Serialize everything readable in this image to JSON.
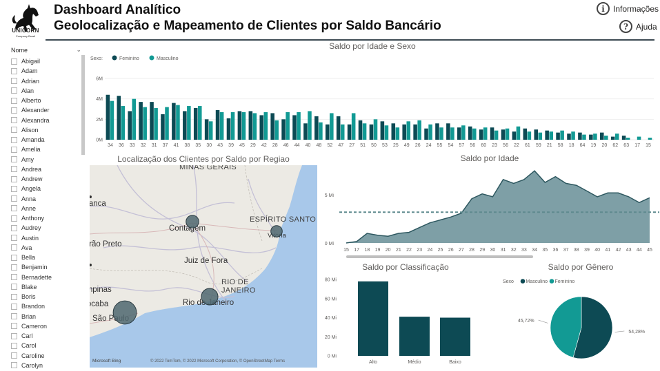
{
  "header": {
    "logo_text": "UNICORN",
    "logo_sub": "Company Brasil",
    "title_line1": "Dashboard Analítico",
    "title_line2": "Geolocalização e Mapeamento de Clientes por Saldo Bancário",
    "info_label": "Informações",
    "help_label": "Ajuda"
  },
  "slicer": {
    "header": "Nome",
    "items": [
      "Abigail",
      "Adam",
      "Adrian",
      "Alan",
      "Alberto",
      "Alexander",
      "Alexandra",
      "Alison",
      "Amanda",
      "Amelia",
      "Amy",
      "Andrea",
      "Andrew",
      "Angela",
      "Anna",
      "Anne",
      "Anthony",
      "Audrey",
      "Austin",
      "Ava",
      "Bella",
      "Benjamin",
      "Bernadette",
      "Blake",
      "Boris",
      "Brandon",
      "Brian",
      "Cameron",
      "Carl",
      "Carol",
      "Caroline",
      "Carolyn"
    ]
  },
  "colors": {
    "feminino": "#0d4a54",
    "masculino": "#129a94",
    "area_fill": "#7e9fa6",
    "area_line": "#2e5860",
    "ref_line": "#5e8a8e",
    "header_line": "#3c4a52"
  },
  "bar_chart": {
    "title": "Saldo por Idade e Sexo",
    "legend_title": "Sexo:",
    "series_names": [
      "Feminino",
      "Masculino"
    ]
  },
  "map_vis": {
    "title": "Localização dos Clientes por Saldo por Regiao",
    "states": [
      "MINAS GERAIS",
      "ESPÍRITO SANTO",
      "RIO DE",
      "JANEIRO"
    ],
    "cities": [
      "Contagem",
      "Vitória",
      "Juiz de Fora",
      "Rio de Janeiro",
      "São Paulo",
      "Campinas",
      "Sorocaba",
      "Ribeirão Preto",
      "Franca"
    ],
    "attribution": "© 2022 TomTom, © 2022 Microsoft Corporation, © OpenStreetMap  Terms",
    "bing": "Microsoft Bing"
  },
  "chart_data": [
    {
      "type": "bar",
      "title": "Saldo por Idade e Sexo",
      "categories": [
        "34",
        "36",
        "33",
        "32",
        "31",
        "37",
        "41",
        "38",
        "35",
        "30",
        "43",
        "39",
        "45",
        "29",
        "42",
        "28",
        "46",
        "44",
        "40",
        "48",
        "52",
        "47",
        "27",
        "51",
        "50",
        "53",
        "25",
        "49",
        "26",
        "24",
        "55",
        "54",
        "57",
        "56",
        "60",
        "23",
        "56",
        "22",
        "61",
        "59",
        "21",
        "58",
        "18",
        "64",
        "19",
        "20",
        "62",
        "63",
        "17",
        "15"
      ],
      "series": [
        {
          "name": "Feminino",
          "values": [
            4.4,
            4.3,
            2.8,
            3.7,
            3.7,
            2.5,
            3.6,
            2.8,
            3.1,
            2.0,
            2.9,
            2.1,
            2.8,
            2.8,
            2.4,
            2.6,
            2.0,
            2.4,
            1.6,
            2.3,
            1.5,
            2.3,
            1.5,
            1.9,
            1.5,
            1.8,
            1.6,
            1.5,
            1.5,
            1.1,
            1.6,
            1.6,
            1.2,
            1.3,
            1.0,
            1.2,
            1.0,
            0.8,
            1.1,
            1.0,
            0.9,
            0.7,
            0.6,
            0.7,
            0.5,
            0.7,
            0.3,
            0.4,
            0.0,
            0.0
          ]
        },
        {
          "name": "Masculino",
          "values": [
            3.8,
            3.3,
            4.0,
            3.2,
            3.1,
            3.2,
            3.4,
            3.3,
            3.3,
            1.8,
            2.7,
            2.7,
            2.7,
            2.6,
            2.7,
            1.9,
            2.7,
            2.7,
            2.8,
            1.7,
            2.6,
            1.5,
            2.6,
            1.6,
            2.0,
            1.4,
            1.2,
            1.8,
            1.9,
            1.5,
            1.2,
            1.2,
            1.4,
            1.1,
            1.2,
            0.9,
            1.1,
            1.3,
            0.8,
            0.7,
            0.8,
            0.9,
            0.8,
            0.5,
            0.6,
            0.4,
            0.6,
            0.2,
            0.3,
            0.2
          ]
        }
      ],
      "legend_title": "Sexo:",
      "ylim": [
        0,
        6
      ],
      "yticks": [
        "0M",
        "2M",
        "4M",
        "6M"
      ],
      "legend_position": "top-left"
    },
    {
      "type": "area",
      "title": "Saldo por Idade",
      "categories": [
        "15",
        "17",
        "18",
        "19",
        "20",
        "21",
        "22",
        "23",
        "24",
        "25",
        "26",
        "27",
        "28",
        "29",
        "30",
        "31",
        "32",
        "33",
        "34",
        "35",
        "36",
        "37",
        "38",
        "39",
        "40",
        "41",
        "42",
        "43",
        "44",
        "45"
      ],
      "values": [
        0.0,
        0.15,
        1.0,
        0.8,
        0.7,
        1.0,
        1.1,
        1.6,
        2.1,
        2.4,
        2.7,
        3.1,
        4.6,
        5.1,
        4.8,
        6.6,
        6.2,
        6.6,
        7.5,
        6.3,
        6.9,
        6.2,
        6.0,
        5.4,
        4.8,
        5.2,
        5.2,
        4.8,
        4.2,
        4.7
      ],
      "reference_line": 3.2,
      "ylim": [
        0,
        7.8
      ],
      "yticks": [
        "0 Mi",
        "5 Mi"
      ]
    },
    {
      "type": "bar",
      "title": "Saldo por Classificação",
      "categories": [
        "Alto",
        "Médio",
        "Baixo"
      ],
      "values": [
        78,
        41,
        40
      ],
      "ylim": [
        0,
        80
      ],
      "yticks": [
        "0 Mi",
        "20 Mi",
        "40 Mi",
        "60 Mi",
        "80 Mi"
      ]
    },
    {
      "type": "pie",
      "title": "Saldo por Gênero",
      "legend_title": "Sexo",
      "categories": [
        "Masculino",
        "Feminino"
      ],
      "values": [
        54.28,
        45.72
      ],
      "labels": [
        "54,28%",
        "45,72%"
      ],
      "legend_position": "top-left"
    },
    {
      "type": "scatter",
      "title": "Localização dos Clientes por Saldo por Regiao",
      "points": [
        {
          "name": "Contagem",
          "saldo": 1.5
        },
        {
          "name": "Vitória",
          "saldo": 1.0
        },
        {
          "name": "Rio de Janeiro",
          "saldo": 3.5
        },
        {
          "name": "São Paulo",
          "saldo": 9.0
        }
      ]
    }
  ]
}
